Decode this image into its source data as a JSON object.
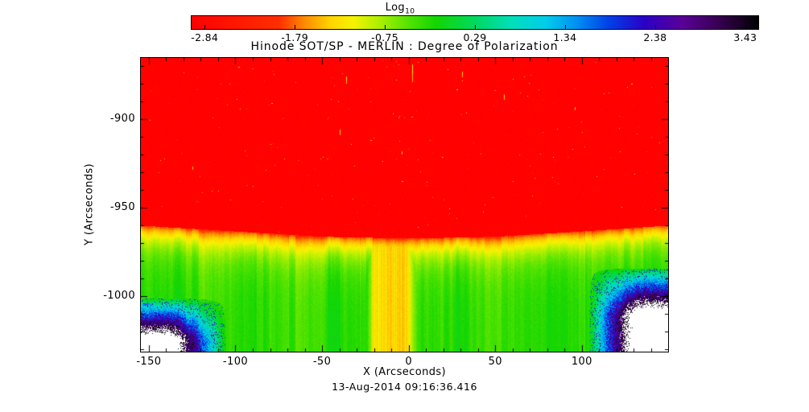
{
  "chart_data": {
    "type": "heatmap",
    "title": "Hinode SOT/SP - MERLIN : Degree of Polarization",
    "xlabel": "X (Arcseconds)",
    "ylabel": "Y (Arcseconds)",
    "timestamp": "13-Aug-2014 09:16:36.416",
    "colorbar": {
      "label": "Log",
      "label_sub": "10",
      "range": [
        -2.84,
        3.43
      ],
      "ticks": [
        -2.84,
        -1.79,
        -0.75,
        0.29,
        1.34,
        2.38,
        3.43
      ],
      "tick_labels": [
        "-2.84",
        "-1.79",
        "-0.75",
        "0.29",
        "1.34",
        "2.38",
        "3.43"
      ],
      "over_color": "#ffffff",
      "stops": [
        {
          "pos": 0.0,
          "color": "#ff0000"
        },
        {
          "pos": 0.155,
          "color": "#ff2f00"
        },
        {
          "pos": 0.2,
          "color": "#ff8c00"
        },
        {
          "pos": 0.245,
          "color": "#ffd400"
        },
        {
          "pos": 0.285,
          "color": "#f6f200"
        },
        {
          "pos": 0.33,
          "color": "#aef000"
        },
        {
          "pos": 0.385,
          "color": "#50e300"
        },
        {
          "pos": 0.43,
          "color": "#14d600"
        },
        {
          "pos": 0.5,
          "color": "#00d860"
        },
        {
          "pos": 0.565,
          "color": "#00dfba"
        },
        {
          "pos": 0.625,
          "color": "#00cdea"
        },
        {
          "pos": 0.68,
          "color": "#008ff2"
        },
        {
          "pos": 0.735,
          "color": "#0041e6"
        },
        {
          "pos": 0.8,
          "color": "#2b00c6"
        },
        {
          "pos": 0.865,
          "color": "#5a0198"
        },
        {
          "pos": 0.93,
          "color": "#380052"
        },
        {
          "pos": 1.0,
          "color": "#000000"
        }
      ]
    },
    "x_axis": {
      "range": [
        -154.6,
        149.8
      ],
      "major_ticks": [
        -150,
        -100,
        -50,
        0,
        50,
        100
      ],
      "major_tick_labels": [
        "-150",
        "-100",
        "-50",
        "0",
        "50",
        "100"
      ],
      "minor_step": 10
    },
    "y_axis": {
      "range": [
        -1031.4,
        -865.5
      ],
      "major_ticks": [
        -900,
        -950,
        -1000
      ],
      "major_tick_labels": [
        "-900",
        "-950",
        "-1000"
      ],
      "minor_step": 10
    },
    "limb_boundary": [
      {
        "x": -150,
        "y": -960.5
      },
      {
        "x": -100,
        "y": -963.5
      },
      {
        "x": -50,
        "y": -966.5
      },
      {
        "x": 0,
        "y": -967.5
      },
      {
        "x": 50,
        "y": -966.5
      },
      {
        "x": 100,
        "y": -963.5
      },
      {
        "x": 145,
        "y": -960.5
      }
    ],
    "regions": {
      "above_limb": {
        "value": -2.84,
        "color_desc": "red off-limb background with sparse yellow-orange speckles"
      },
      "limb_band": {
        "value": -1.6,
        "width_arcsec": 12,
        "color_desc": "orange-yellow band just below limb fading to green"
      },
      "disk": {
        "value": -0.25,
        "color_desc": "green on-disk area with vertical streak noise"
      },
      "bright_column": {
        "x_range": [
          -25,
          5
        ],
        "value": -1.15,
        "color_desc": "yellow vertical column below limb"
      },
      "corner_left": {
        "x_edge": -105,
        "x_span": 33,
        "y_edge": -1001,
        "y_span": 24,
        "value": 1.8,
        "color_desc": "blue speckle patch with white saturated core"
      },
      "corner_right": {
        "x_edge": 104,
        "x_span": 28,
        "y_edge": -984,
        "y_span": 27,
        "value": 2.2,
        "color_desc": "large blue speckle patch with white saturated core"
      }
    },
    "speckles_above_limb": [
      {
        "x": 2,
        "y": -869,
        "len": 10
      },
      {
        "x": -36,
        "y": -876,
        "len": 4
      },
      {
        "x": 31,
        "y": -873,
        "len": 3
      },
      {
        "x": -40,
        "y": -906,
        "len": 3
      },
      {
        "x": 55,
        "y": -886,
        "len": 3
      },
      {
        "x": -125,
        "y": -927,
        "len": 2
      },
      {
        "x": 96,
        "y": -893,
        "len": 2
      },
      {
        "x": -4,
        "y": -918,
        "len": 2
      }
    ],
    "grid": {
      "x": [
        -150,
        -120,
        -90,
        -60,
        -30,
        0,
        30,
        60,
        90,
        120,
        145
      ],
      "y": [
        -880,
        -910,
        -940,
        -960,
        -970,
        -985,
        -1000,
        -1015,
        -1030
      ],
      "values": [
        [
          -2.8,
          -2.8,
          -2.8,
          -2.8,
          -2.8,
          -2.8,
          -2.8,
          -2.8,
          -2.8,
          -2.8,
          -2.8
        ],
        [
          -2.8,
          -2.8,
          -2.8,
          -2.8,
          -2.8,
          -2.8,
          -2.8,
          -2.8,
          -2.8,
          -2.8,
          -2.8
        ],
        [
          -2.8,
          -2.8,
          -2.8,
          -2.8,
          -2.8,
          -2.8,
          -2.8,
          -2.8,
          -2.8,
          -2.8,
          -2.8
        ],
        [
          -1.9,
          -2.4,
          -2.8,
          -2.8,
          -2.8,
          -2.8,
          -2.8,
          -2.8,
          -2.8,
          -2.4,
          -1.9
        ],
        [
          -0.8,
          -1.0,
          -1.3,
          -1.5,
          -1.6,
          -1.6,
          -1.5,
          -1.4,
          -1.2,
          -1.0,
          -0.8
        ],
        [
          -0.4,
          -0.5,
          -0.6,
          -0.7,
          -1.2,
          -1.2,
          -0.7,
          -0.6,
          -0.5,
          -0.4,
          -0.3
        ],
        [
          -0.3,
          -0.3,
          -0.4,
          -0.4,
          -1.1,
          -1.1,
          -0.4,
          -0.4,
          -0.3,
          -0.2,
          0.8
        ],
        [
          1.6,
          -0.2,
          -0.3,
          -0.4,
          -1.1,
          -1.1,
          -0.4,
          -0.3,
          -0.2,
          1.9,
          2.8
        ],
        [
          2.3,
          0.6,
          -0.3,
          -0.4,
          -1.0,
          -1.0,
          -0.4,
          -0.3,
          0.4,
          2.5,
          3.4
        ]
      ]
    }
  }
}
